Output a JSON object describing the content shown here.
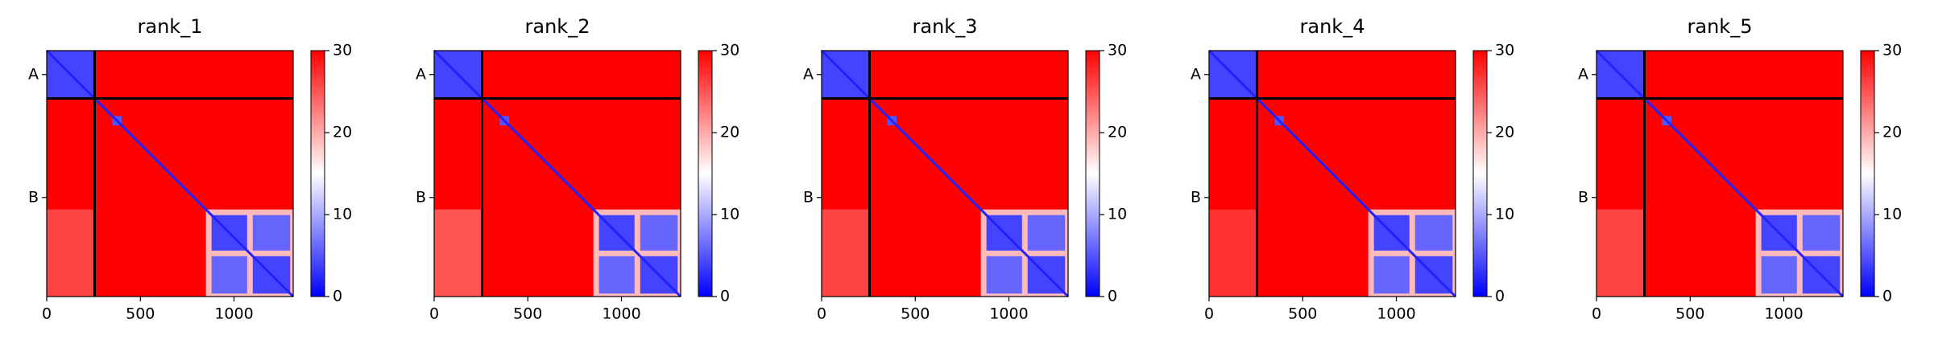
{
  "chart_data": [
    {
      "type": "heatmap",
      "title": "rank_1",
      "cmap": "bwr",
      "xlim": [
        0,
        1316
      ],
      "ylim": [
        1316,
        0
      ],
      "xticks": [
        0,
        500,
        1000
      ],
      "yticks": [
        {
          "value": 128,
          "label": "A"
        },
        {
          "value": 786,
          "label": "B"
        }
      ],
      "chain_breaks": [
        256
      ],
      "background": 30,
      "diagonal_value": 2,
      "clim": [
        0,
        30
      ],
      "cticks": [
        0,
        10,
        20,
        30
      ],
      "regions": [
        {
          "x": [
            0,
            256
          ],
          "y": [
            0,
            256
          ],
          "value": 4
        },
        {
          "x": [
            0,
            256
          ],
          "y": [
            850,
            1316
          ],
          "value": 26
        },
        {
          "x": [
            850,
            1316
          ],
          "y": [
            850,
            1316
          ],
          "value": 19
        },
        {
          "x": [
            880,
            1070
          ],
          "y": [
            880,
            1070
          ],
          "value": 4
        },
        {
          "x": [
            1100,
            1300
          ],
          "y": [
            1100,
            1300
          ],
          "value": 4
        },
        {
          "x": [
            880,
            1070
          ],
          "y": [
            1100,
            1300
          ],
          "value": 6
        },
        {
          "x": [
            1100,
            1300
          ],
          "y": [
            880,
            1070
          ],
          "value": 6
        },
        {
          "x": [
            350,
            400
          ],
          "y": [
            350,
            400
          ],
          "value": 5
        }
      ]
    },
    {
      "type": "heatmap",
      "title": "rank_2",
      "cmap": "bwr",
      "xlim": [
        0,
        1316
      ],
      "ylim": [
        1316,
        0
      ],
      "xticks": [
        0,
        500,
        1000
      ],
      "yticks": [
        {
          "value": 128,
          "label": "A"
        },
        {
          "value": 786,
          "label": "B"
        }
      ],
      "chain_breaks": [
        256
      ],
      "background": 30,
      "diagonal_value": 2,
      "clim": [
        0,
        30
      ],
      "cticks": [
        0,
        10,
        20,
        30
      ],
      "regions": [
        {
          "x": [
            0,
            256
          ],
          "y": [
            0,
            256
          ],
          "value": 4
        },
        {
          "x": [
            0,
            256
          ],
          "y": [
            850,
            1316
          ],
          "value": 25
        },
        {
          "x": [
            850,
            1316
          ],
          "y": [
            850,
            1316
          ],
          "value": 19
        },
        {
          "x": [
            880,
            1070
          ],
          "y": [
            880,
            1070
          ],
          "value": 4
        },
        {
          "x": [
            1100,
            1300
          ],
          "y": [
            1100,
            1300
          ],
          "value": 4
        },
        {
          "x": [
            880,
            1070
          ],
          "y": [
            1100,
            1300
          ],
          "value": 6
        },
        {
          "x": [
            1100,
            1300
          ],
          "y": [
            880,
            1070
          ],
          "value": 6
        },
        {
          "x": [
            350,
            400
          ],
          "y": [
            350,
            400
          ],
          "value": 5
        }
      ]
    },
    {
      "type": "heatmap",
      "title": "rank_3",
      "cmap": "bwr",
      "xlim": [
        0,
        1316
      ],
      "ylim": [
        1316,
        0
      ],
      "xticks": [
        0,
        500,
        1000
      ],
      "yticks": [
        {
          "value": 128,
          "label": "A"
        },
        {
          "value": 786,
          "label": "B"
        }
      ],
      "chain_breaks": [
        256
      ],
      "background": 30,
      "diagonal_value": 2,
      "clim": [
        0,
        30
      ],
      "cticks": [
        0,
        10,
        20,
        30
      ],
      "regions": [
        {
          "x": [
            0,
            256
          ],
          "y": [
            0,
            256
          ],
          "value": 4
        },
        {
          "x": [
            0,
            256
          ],
          "y": [
            850,
            1316
          ],
          "value": 26
        },
        {
          "x": [
            850,
            1316
          ],
          "y": [
            850,
            1316
          ],
          "value": 19
        },
        {
          "x": [
            880,
            1070
          ],
          "y": [
            880,
            1070
          ],
          "value": 4
        },
        {
          "x": [
            1100,
            1300
          ],
          "y": [
            1100,
            1300
          ],
          "value": 4
        },
        {
          "x": [
            880,
            1070
          ],
          "y": [
            1100,
            1300
          ],
          "value": 6
        },
        {
          "x": [
            1100,
            1300
          ],
          "y": [
            880,
            1070
          ],
          "value": 6
        },
        {
          "x": [
            350,
            400
          ],
          "y": [
            350,
            400
          ],
          "value": 5
        }
      ]
    },
    {
      "type": "heatmap",
      "title": "rank_4",
      "cmap": "bwr",
      "xlim": [
        0,
        1316
      ],
      "ylim": [
        1316,
        0
      ],
      "xticks": [
        0,
        500,
        1000
      ],
      "yticks": [
        {
          "value": 128,
          "label": "A"
        },
        {
          "value": 786,
          "label": "B"
        }
      ],
      "chain_breaks": [
        256
      ],
      "background": 30,
      "diagonal_value": 2,
      "clim": [
        0,
        30
      ],
      "cticks": [
        0,
        10,
        20,
        30
      ],
      "regions": [
        {
          "x": [
            0,
            256
          ],
          "y": [
            0,
            256
          ],
          "value": 4
        },
        {
          "x": [
            0,
            256
          ],
          "y": [
            850,
            1316
          ],
          "value": 27
        },
        {
          "x": [
            850,
            1316
          ],
          "y": [
            850,
            1316
          ],
          "value": 19
        },
        {
          "x": [
            880,
            1070
          ],
          "y": [
            880,
            1070
          ],
          "value": 4
        },
        {
          "x": [
            1100,
            1300
          ],
          "y": [
            1100,
            1300
          ],
          "value": 4
        },
        {
          "x": [
            880,
            1070
          ],
          "y": [
            1100,
            1300
          ],
          "value": 6
        },
        {
          "x": [
            1100,
            1300
          ],
          "y": [
            880,
            1070
          ],
          "value": 6
        },
        {
          "x": [
            350,
            400
          ],
          "y": [
            350,
            400
          ],
          "value": 5
        }
      ]
    },
    {
      "type": "heatmap",
      "title": "rank_5",
      "cmap": "bwr",
      "xlim": [
        0,
        1316
      ],
      "ylim": [
        1316,
        0
      ],
      "xticks": [
        0,
        500,
        1000
      ],
      "yticks": [
        {
          "value": 128,
          "label": "A"
        },
        {
          "value": 786,
          "label": "B"
        }
      ],
      "chain_breaks": [
        256
      ],
      "background": 30,
      "diagonal_value": 2,
      "clim": [
        0,
        30
      ],
      "cticks": [
        0,
        10,
        20,
        30
      ],
      "regions": [
        {
          "x": [
            0,
            256
          ],
          "y": [
            0,
            256
          ],
          "value": 4
        },
        {
          "x": [
            0,
            256
          ],
          "y": [
            850,
            1316
          ],
          "value": 26
        },
        {
          "x": [
            850,
            1316
          ],
          "y": [
            850,
            1316
          ],
          "value": 19
        },
        {
          "x": [
            880,
            1070
          ],
          "y": [
            880,
            1070
          ],
          "value": 4
        },
        {
          "x": [
            1100,
            1300
          ],
          "y": [
            1100,
            1300
          ],
          "value": 4
        },
        {
          "x": [
            880,
            1070
          ],
          "y": [
            1100,
            1300
          ],
          "value": 6
        },
        {
          "x": [
            1100,
            1300
          ],
          "y": [
            880,
            1070
          ],
          "value": 6
        },
        {
          "x": [
            350,
            400
          ],
          "y": [
            350,
            400
          ],
          "value": 5
        }
      ]
    }
  ]
}
